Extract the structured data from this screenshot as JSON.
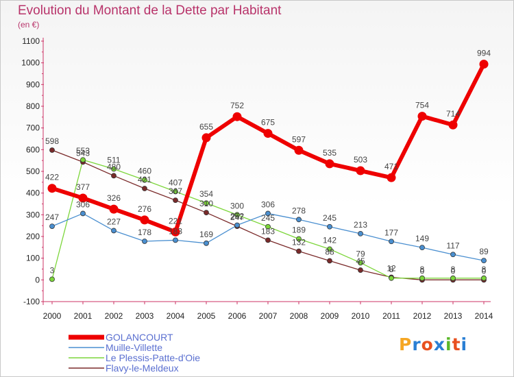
{
  "title": "Evolution du Montant de la Dette par Habitant",
  "subtitle": "(en €)",
  "logo": {
    "text": "Proxiti",
    "colors": [
      "#f5a623",
      "#2a7fd4",
      "#e8501f",
      "#2a7fd4",
      "#5bb82a",
      "#e8501f",
      "#2a7fd4"
    ]
  },
  "chart_data": {
    "type": "line",
    "x": [
      "2000",
      "2001",
      "2002",
      "2003",
      "2004",
      "2005",
      "2006",
      "2007",
      "2008",
      "2009",
      "2010",
      "2011",
      "2012",
      "2013",
      "2014"
    ],
    "ylim": [
      -100,
      1100
    ],
    "yticks": [
      -100,
      0,
      100,
      200,
      300,
      400,
      500,
      600,
      700,
      800,
      900,
      1000,
      1100
    ],
    "grid": false,
    "legend_position": "bottom-left",
    "series": [
      {
        "name": "Flavy-le-Meldeux",
        "color": "#7a2a2a",
        "width": 1.3,
        "marker_r": 3.5,
        "values": [
          598,
          543,
          480,
          421,
          367,
          310,
          247,
          183,
          132,
          88,
          45,
          12,
          0,
          0,
          0
        ],
        "labels": [
          "598",
          "543",
          "480",
          "421",
          "367",
          "310",
          "247",
          "183",
          "132",
          "88",
          "45",
          "12",
          "0",
          "0",
          "0"
        ]
      },
      {
        "name": "Le Plessis-Patte-d'Oie",
        "color": "#7cd63a",
        "width": 1.3,
        "marker_r": 3.5,
        "values": [
          3,
          553,
          511,
          460,
          407,
          354,
          300,
          245,
          189,
          142,
          79,
          8,
          8,
          8,
          8
        ],
        "labels": [
          "3",
          "553",
          "511",
          "460",
          "407",
          "354",
          "300",
          "245",
          "189",
          "142",
          "79",
          "8",
          "8",
          "8",
          "8"
        ]
      },
      {
        "name": "Muille-Villette",
        "color": "#4a8fd0",
        "width": 1.3,
        "marker_r": 3.5,
        "values": [
          247,
          306,
          227,
          178,
          183,
          169,
          252,
          306,
          278,
          245,
          213,
          177,
          149,
          117,
          89
        ],
        "labels": [
          "247",
          "306",
          "227",
          "178",
          "183",
          "169",
          "252",
          "306",
          "278",
          "245",
          "213",
          "177",
          "149",
          "117",
          "89"
        ]
      },
      {
        "name": "GOLANCOURT",
        "color": "#ee0000",
        "width": 6,
        "marker_r": 6.5,
        "values": [
          422,
          377,
          326,
          276,
          221,
          655,
          752,
          675,
          597,
          535,
          503,
          471,
          754,
          714,
          994
        ],
        "labels": [
          "422",
          "377",
          "326",
          "276",
          "221",
          "655",
          "752",
          "675",
          "597",
          "535",
          "503",
          "471",
          "754",
          "714",
          "994"
        ]
      }
    ],
    "legend_order": [
      "GOLANCOURT",
      "Muille-Villette",
      "Le Plessis-Patte-d'Oie",
      "Flavy-le-Meldeux"
    ]
  }
}
